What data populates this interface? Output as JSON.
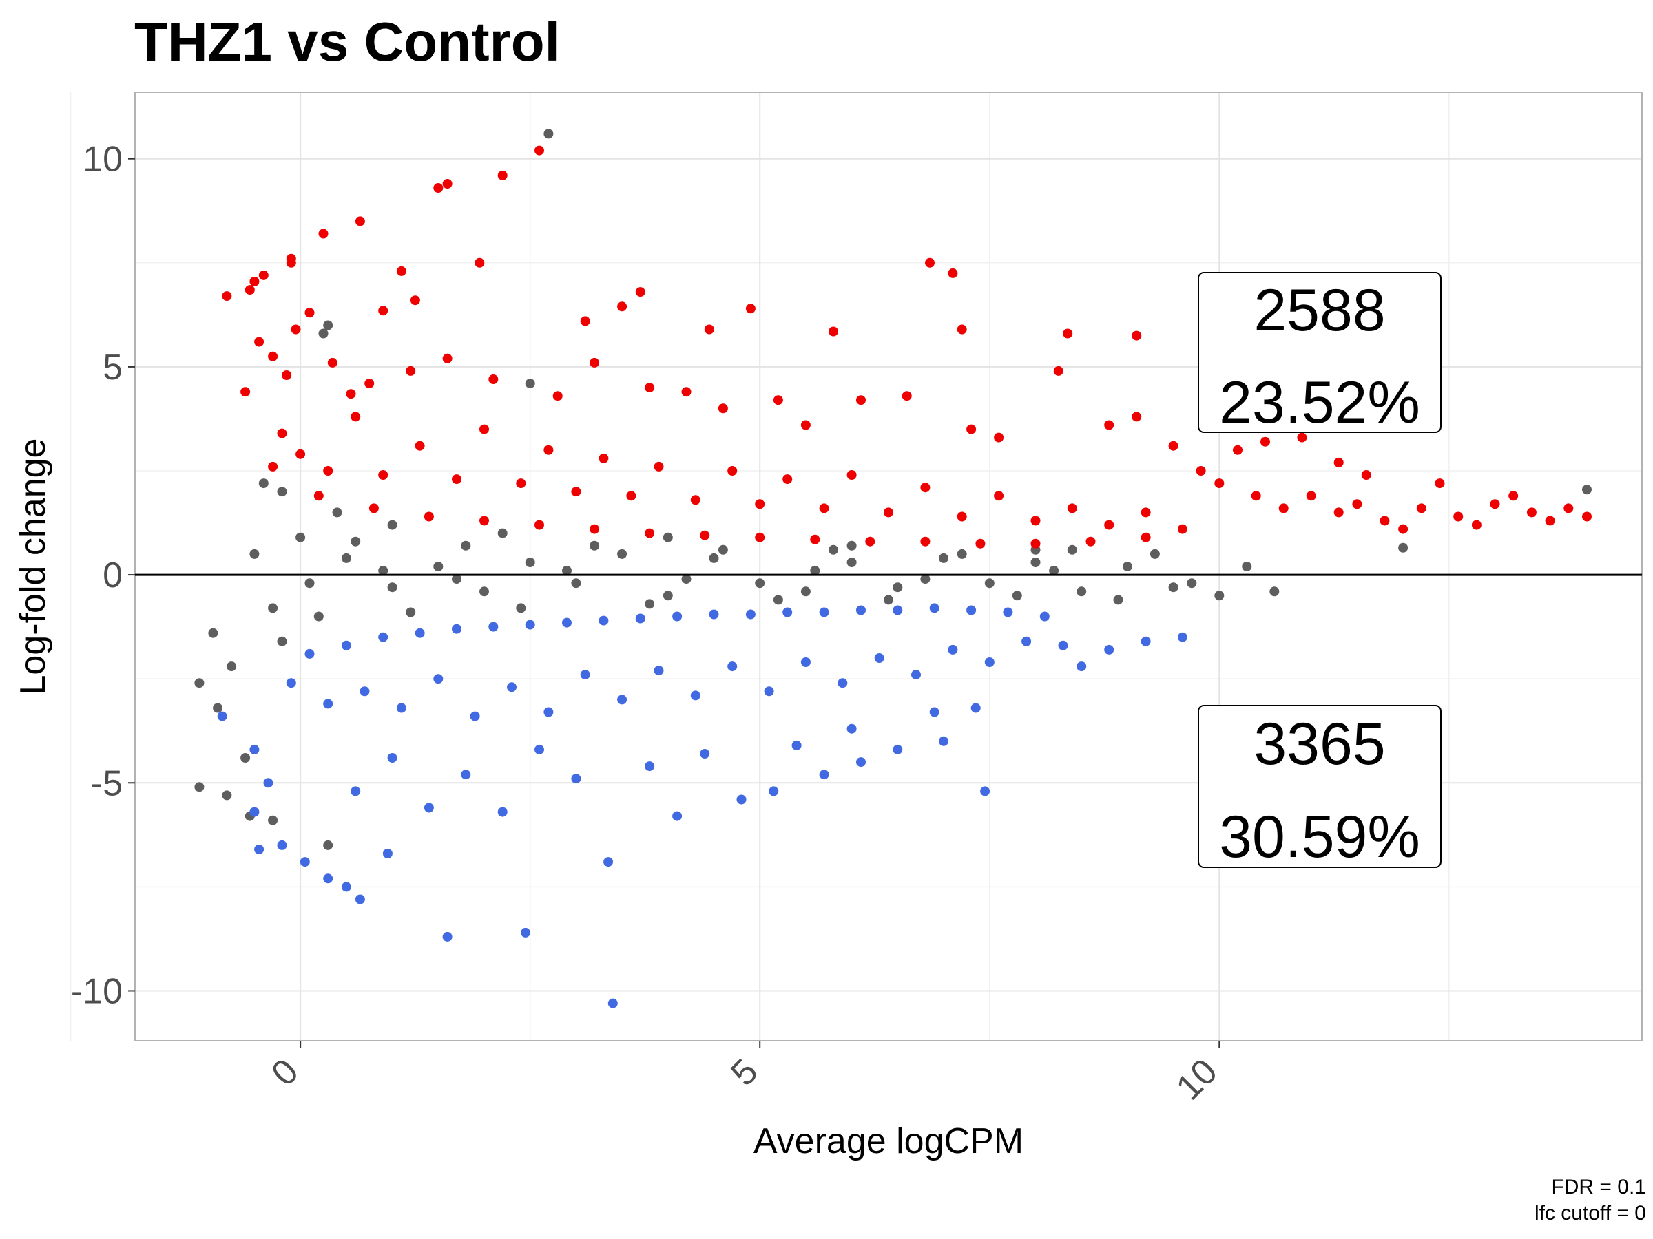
{
  "chart_data": {
    "type": "scatter",
    "title": "THZ1 vs Control",
    "xlabel": "Average logCPM",
    "ylabel": "Log-fold change",
    "xlim": [
      -1.8,
      14.6
    ],
    "ylim": [
      -11.2,
      11.6
    ],
    "x_ticks": [
      0,
      5,
      10
    ],
    "y_ticks": [
      -10,
      -5,
      0,
      5,
      10
    ],
    "x_tick_labels": [
      "0",
      "5",
      "10"
    ],
    "y_tick_labels": [
      "-10",
      "-5",
      "0",
      "5",
      "10"
    ],
    "grid": true,
    "hline_y": 0,
    "colors": {
      "up": "#ee0000",
      "down": "#4169e1",
      "ns": "#5e5e5e"
    },
    "series": [
      {
        "name": "up",
        "points": [
          [
            -0.8,
            6.7
          ],
          [
            -0.55,
            6.85
          ],
          [
            -0.5,
            7.05
          ],
          [
            -0.4,
            7.2
          ],
          [
            -0.1,
            7.5
          ],
          [
            -0.1,
            7.6
          ],
          [
            0.25,
            8.2
          ],
          [
            0.65,
            8.5
          ],
          [
            1.5,
            9.3
          ],
          [
            1.6,
            9.4
          ],
          [
            2.2,
            9.6
          ],
          [
            2.6,
            10.2
          ],
          [
            1.95,
            7.5
          ],
          [
            1.1,
            7.3
          ],
          [
            1.25,
            6.6
          ],
          [
            0.9,
            6.35
          ],
          [
            0.1,
            6.3
          ],
          [
            -0.05,
            5.9
          ],
          [
            3.7,
            6.8
          ],
          [
            3.5,
            6.45
          ],
          [
            4.9,
            6.4
          ],
          [
            6.85,
            7.5
          ],
          [
            7.1,
            7.25
          ],
          [
            7.2,
            5.9
          ],
          [
            8.35,
            5.8
          ],
          [
            9.1,
            5.75
          ],
          [
            5.8,
            5.85
          ],
          [
            4.45,
            5.9
          ],
          [
            3.1,
            6.1
          ],
          [
            9.9,
            7.0
          ],
          [
            -0.6,
            4.4
          ],
          [
            -0.45,
            5.6
          ],
          [
            -0.3,
            5.25
          ],
          [
            -0.15,
            4.8
          ],
          [
            0.35,
            5.1
          ],
          [
            0.55,
            4.35
          ],
          [
            0.75,
            4.6
          ],
          [
            1.2,
            4.9
          ],
          [
            1.6,
            5.2
          ],
          [
            2.1,
            4.7
          ],
          [
            2.8,
            4.3
          ],
          [
            3.2,
            5.1
          ],
          [
            3.8,
            4.5
          ],
          [
            4.2,
            4.4
          ],
          [
            4.6,
            4.0
          ],
          [
            5.2,
            4.2
          ],
          [
            5.5,
            3.6
          ],
          [
            6.1,
            4.2
          ],
          [
            6.6,
            4.3
          ],
          [
            7.3,
            3.5
          ],
          [
            7.6,
            3.3
          ],
          [
            8.25,
            4.9
          ],
          [
            8.8,
            3.6
          ],
          [
            9.1,
            3.8
          ],
          [
            9.5,
            3.1
          ],
          [
            10.2,
            3.0
          ],
          [
            10.5,
            3.2
          ],
          [
            10.9,
            3.3
          ],
          [
            11.3,
            2.7
          ],
          [
            11.6,
            2.4
          ],
          [
            9.8,
            2.5
          ],
          [
            10.0,
            2.2
          ],
          [
            10.4,
            1.9
          ],
          [
            10.7,
            1.6
          ],
          [
            11.0,
            1.9
          ],
          [
            11.3,
            1.5
          ],
          [
            11.5,
            1.7
          ],
          [
            11.8,
            1.3
          ],
          [
            12.0,
            1.1
          ],
          [
            12.2,
            1.6
          ],
          [
            12.4,
            2.2
          ],
          [
            12.6,
            1.4
          ],
          [
            12.8,
            1.2
          ],
          [
            13.0,
            1.7
          ],
          [
            13.2,
            1.9
          ],
          [
            13.4,
            1.5
          ],
          [
            13.6,
            1.3
          ],
          [
            13.8,
            1.6
          ],
          [
            14.0,
            1.4
          ],
          [
            -0.2,
            3.4
          ],
          [
            0.0,
            2.9
          ],
          [
            0.3,
            2.5
          ],
          [
            0.6,
            3.8
          ],
          [
            0.9,
            2.4
          ],
          [
            1.3,
            3.1
          ],
          [
            1.7,
            2.3
          ],
          [
            2.0,
            3.5
          ],
          [
            2.4,
            2.2
          ],
          [
            2.7,
            3.0
          ],
          [
            3.0,
            2.0
          ],
          [
            3.3,
            2.8
          ],
          [
            3.6,
            1.9
          ],
          [
            3.9,
            2.6
          ],
          [
            4.3,
            1.8
          ],
          [
            4.7,
            2.5
          ],
          [
            5.0,
            1.7
          ],
          [
            5.3,
            2.3
          ],
          [
            5.7,
            1.6
          ],
          [
            6.0,
            2.4
          ],
          [
            6.4,
            1.5
          ],
          [
            6.8,
            2.1
          ],
          [
            7.2,
            1.4
          ],
          [
            7.6,
            1.9
          ],
          [
            8.0,
            1.3
          ],
          [
            8.4,
            1.6
          ],
          [
            8.8,
            1.2
          ],
          [
            9.2,
            1.5
          ],
          [
            9.6,
            1.1
          ],
          [
            -0.3,
            2.6
          ],
          [
            0.2,
            1.9
          ],
          [
            0.8,
            1.6
          ],
          [
            1.4,
            1.4
          ],
          [
            2.0,
            1.3
          ],
          [
            2.6,
            1.2
          ],
          [
            3.2,
            1.1
          ],
          [
            3.8,
            1.0
          ],
          [
            4.4,
            0.95
          ],
          [
            5.0,
            0.9
          ],
          [
            5.6,
            0.85
          ],
          [
            6.2,
            0.8
          ],
          [
            6.8,
            0.8
          ],
          [
            7.4,
            0.75
          ],
          [
            8.0,
            0.75
          ],
          [
            8.6,
            0.8
          ],
          [
            9.2,
            0.9
          ]
        ]
      },
      {
        "name": "down",
        "points": [
          [
            -0.85,
            -3.4
          ],
          [
            -0.5,
            -4.2
          ],
          [
            -0.35,
            -5.0
          ],
          [
            -0.5,
            -5.7
          ],
          [
            -0.45,
            -6.6
          ],
          [
            -0.2,
            -6.5
          ],
          [
            0.05,
            -6.9
          ],
          [
            0.3,
            -7.3
          ],
          [
            0.5,
            -7.5
          ],
          [
            0.65,
            -7.8
          ],
          [
            0.95,
            -6.7
          ],
          [
            1.6,
            -8.7
          ],
          [
            2.45,
            -8.6
          ],
          [
            3.4,
            -10.3
          ],
          [
            3.35,
            -6.9
          ],
          [
            4.1,
            -5.8
          ],
          [
            4.8,
            -5.4
          ],
          [
            5.15,
            -5.2
          ],
          [
            5.7,
            -4.8
          ],
          [
            6.1,
            -4.5
          ],
          [
            6.5,
            -4.2
          ],
          [
            7.0,
            -4.0
          ],
          [
            7.35,
            -3.2
          ],
          [
            7.45,
            -5.2
          ],
          [
            8.5,
            -2.2
          ],
          [
            8.8,
            -1.8
          ],
          [
            9.2,
            -1.6
          ],
          [
            9.6,
            -1.5
          ],
          [
            0.6,
            -5.2
          ],
          [
            1.0,
            -4.4
          ],
          [
            1.4,
            -5.6
          ],
          [
            1.8,
            -4.8
          ],
          [
            2.2,
            -5.7
          ],
          [
            2.6,
            -4.2
          ],
          [
            3.0,
            -4.9
          ],
          [
            3.8,
            -4.6
          ],
          [
            4.4,
            -4.3
          ],
          [
            5.4,
            -4.1
          ],
          [
            6.0,
            -3.7
          ],
          [
            6.9,
            -3.3
          ],
          [
            -0.1,
            -2.6
          ],
          [
            0.3,
            -3.1
          ],
          [
            0.7,
            -2.8
          ],
          [
            1.1,
            -3.2
          ],
          [
            1.5,
            -2.5
          ],
          [
            1.9,
            -3.4
          ],
          [
            2.3,
            -2.7
          ],
          [
            2.7,
            -3.3
          ],
          [
            3.1,
            -2.4
          ],
          [
            3.5,
            -3.0
          ],
          [
            3.9,
            -2.3
          ],
          [
            4.3,
            -2.9
          ],
          [
            4.7,
            -2.2
          ],
          [
            5.1,
            -2.8
          ],
          [
            5.5,
            -2.1
          ],
          [
            5.9,
            -2.6
          ],
          [
            6.3,
            -2.0
          ],
          [
            6.7,
            -2.4
          ],
          [
            7.1,
            -1.8
          ],
          [
            7.5,
            -2.1
          ],
          [
            7.9,
            -1.6
          ],
          [
            8.3,
            -1.7
          ],
          [
            0.1,
            -1.9
          ],
          [
            0.5,
            -1.7
          ],
          [
            0.9,
            -1.5
          ],
          [
            1.3,
            -1.4
          ],
          [
            1.7,
            -1.3
          ],
          [
            2.1,
            -1.25
          ],
          [
            2.5,
            -1.2
          ],
          [
            2.9,
            -1.15
          ],
          [
            3.3,
            -1.1
          ],
          [
            3.7,
            -1.05
          ],
          [
            4.1,
            -1.0
          ],
          [
            4.5,
            -0.95
          ],
          [
            4.9,
            -0.95
          ],
          [
            5.3,
            -0.9
          ],
          [
            5.7,
            -0.9
          ],
          [
            6.1,
            -0.85
          ],
          [
            6.5,
            -0.85
          ],
          [
            6.9,
            -0.8
          ],
          [
            7.3,
            -0.85
          ],
          [
            7.7,
            -0.9
          ],
          [
            8.1,
            -1.0
          ]
        ]
      },
      {
        "name": "ns",
        "points": [
          [
            -1.1,
            -2.6
          ],
          [
            -0.9,
            -3.2
          ],
          [
            -1.1,
            -5.1
          ],
          [
            -0.8,
            -5.3
          ],
          [
            -0.55,
            -5.8
          ],
          [
            -0.3,
            -5.9
          ],
          [
            0.3,
            -6.5
          ],
          [
            -0.6,
            -4.4
          ],
          [
            -0.75,
            -2.2
          ],
          [
            -0.95,
            -1.4
          ],
          [
            -0.5,
            0.5
          ],
          [
            -0.4,
            2.2
          ],
          [
            -0.2,
            2.0
          ],
          [
            0.25,
            5.8
          ],
          [
            0.3,
            6.0
          ],
          [
            2.5,
            4.6
          ],
          [
            2.7,
            10.6
          ],
          [
            5.0,
            -0.2
          ],
          [
            0.5,
            0.4
          ],
          [
            1.0,
            -0.3
          ],
          [
            1.5,
            0.2
          ],
          [
            2.0,
            -0.4
          ],
          [
            2.5,
            0.3
          ],
          [
            3.0,
            -0.2
          ],
          [
            3.5,
            0.5
          ],
          [
            4.0,
            -0.5
          ],
          [
            4.5,
            0.4
          ],
          [
            5.5,
            -0.4
          ],
          [
            6.0,
            0.3
          ],
          [
            6.5,
            -0.3
          ],
          [
            7.0,
            0.4
          ],
          [
            7.5,
            -0.2
          ],
          [
            8.0,
            0.3
          ],
          [
            8.5,
            -0.4
          ],
          [
            9.0,
            0.2
          ],
          [
            9.5,
            -0.3
          ],
          [
            10.0,
            -0.5
          ],
          [
            10.3,
            0.2
          ],
          [
            10.6,
            -0.4
          ],
          [
            12.0,
            0.65
          ],
          [
            14.0,
            2.05
          ],
          [
            -0.3,
            -0.8
          ],
          [
            0.0,
            0.9
          ],
          [
            0.2,
            -1.0
          ],
          [
            0.6,
            0.8
          ],
          [
            1.2,
            -0.9
          ],
          [
            1.8,
            0.7
          ],
          [
            2.4,
            -0.8
          ],
          [
            3.2,
            0.7
          ],
          [
            3.8,
            -0.7
          ],
          [
            4.6,
            0.6
          ],
          [
            5.2,
            -0.6
          ],
          [
            5.8,
            0.6
          ],
          [
            6.4,
            -0.6
          ],
          [
            7.2,
            0.5
          ],
          [
            7.8,
            -0.5
          ],
          [
            8.4,
            0.6
          ],
          [
            8.9,
            -0.6
          ],
          [
            9.3,
            0.5
          ],
          [
            9.7,
            -0.2
          ],
          [
            -0.2,
            -1.6
          ],
          [
            0.4,
            1.5
          ],
          [
            1.0,
            1.2
          ],
          [
            2.2,
            1.0
          ],
          [
            4.0,
            0.9
          ],
          [
            6.0,
            0.7
          ],
          [
            8.0,
            0.6
          ],
          [
            0.1,
            -0.2
          ],
          [
            0.9,
            0.1
          ],
          [
            1.7,
            -0.1
          ],
          [
            2.9,
            0.1
          ],
          [
            4.2,
            -0.1
          ],
          [
            5.6,
            0.1
          ],
          [
            6.8,
            -0.1
          ],
          [
            8.2,
            0.1
          ]
        ]
      }
    ],
    "annotations": [
      {
        "count": "2588",
        "percent": "23.52%"
      },
      {
        "count": "3365",
        "percent": "30.59%"
      }
    ],
    "caption": [
      "FDR = 0.1",
      "lfc cutoff = 0"
    ]
  }
}
